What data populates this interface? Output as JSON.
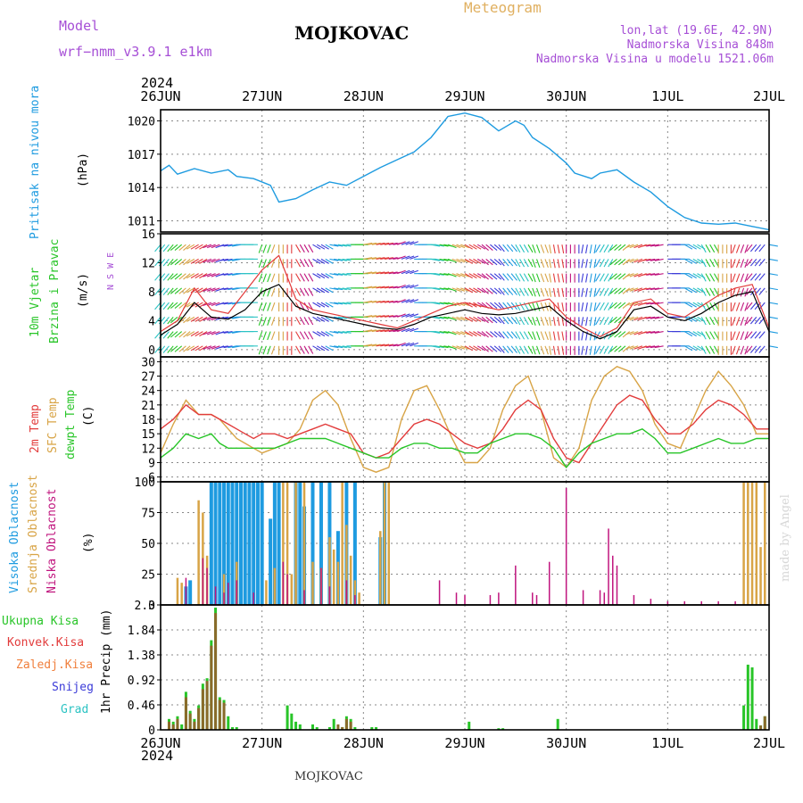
{
  "header": {
    "model_label": "Model",
    "model_name": "wrf−nmm_v3.9.1 e1km",
    "station": "MOJKOVAC",
    "product": "Meteogram",
    "location": "lon,lat (19.6E, 42.9N)",
    "elevation": "Nadmorska Visina 848m",
    "model_elevation": "Nadmorska Visina u modelu 1521.06m",
    "footer_station": "MOJKOVAC",
    "credit": "made by Angel"
  },
  "colors": {
    "pressure": "#1e9be0",
    "wind_speed": "#000000",
    "wind_gust": "#e23b3b",
    "temp": "#e23b3b",
    "sfc_temp": "#d8a446",
    "dewpoint": "#28c528",
    "high_cloud": "#1e9be0",
    "mid_cloud": "#d8a446",
    "low_cloud": "#c0157e",
    "total_precip": "#28c528",
    "conv_precip": "#e23b3b",
    "frozen_precip": "#f07f3c",
    "snow": "#3b3bd8",
    "graupel": "#2bc3c3",
    "model_label": "#a64fd6",
    "product_title": "#e0b060"
  },
  "time_axis": {
    "year": "2024",
    "day_labels": [
      "26JUN",
      "27JUN",
      "28JUN",
      "29JUN",
      "30JUN",
      "1JUL",
      "2JUL"
    ],
    "hours": 144
  },
  "chart_data": [
    {
      "type": "line",
      "panel": "pressure",
      "ylabel_left": "Pritisak na nivou mora",
      "ylabel_unit": "(hPa)",
      "yticks": [
        1011,
        1014,
        1017,
        1020
      ],
      "ylim": [
        1010,
        1021
      ],
      "x_hours": [
        0,
        2,
        4,
        8,
        12,
        16,
        18,
        22,
        26,
        28,
        32,
        36,
        40,
        44,
        48,
        52,
        56,
        60,
        64,
        68,
        72,
        76,
        80,
        84,
        86,
        88,
        92,
        96,
        98,
        102,
        104,
        108,
        112,
        116,
        120,
        124,
        128,
        132,
        136,
        140,
        144
      ],
      "values": [
        1015.5,
        1016.0,
        1015.2,
        1015.7,
        1015.3,
        1015.6,
        1015.0,
        1014.8,
        1014.2,
        1012.7,
        1013.0,
        1013.8,
        1014.5,
        1014.2,
        1015.0,
        1015.8,
        1016.5,
        1017.2,
        1018.5,
        1020.4,
        1020.7,
        1020.3,
        1019.1,
        1020.0,
        1019.6,
        1018.5,
        1017.5,
        1016.2,
        1015.3,
        1014.8,
        1015.3,
        1015.6,
        1014.5,
        1013.6,
        1012.3,
        1011.3,
        1010.8,
        1010.7,
        1010.8,
        1010.5,
        1010.2
      ]
    },
    {
      "type": "line",
      "panel": "wind",
      "ylabel_left": "10m Vjetar",
      "ylabel_left2": "Brzina i Pravac",
      "ylabel_unit": "(m/s)",
      "direction_legend": "N S W E",
      "yticks": [
        0,
        4,
        8,
        12,
        16
      ],
      "ylim": [
        -1,
        16
      ],
      "x_hours": [
        0,
        4,
        8,
        12,
        16,
        20,
        24,
        28,
        32,
        36,
        40,
        44,
        48,
        52,
        56,
        60,
        64,
        68,
        72,
        76,
        80,
        84,
        88,
        92,
        96,
        100,
        104,
        108,
        112,
        116,
        120,
        124,
        128,
        132,
        136,
        140,
        144
      ],
      "series": [
        {
          "name": "speed",
          "values": [
            2.0,
            3.5,
            6.5,
            4.5,
            4.2,
            5.5,
            8.0,
            9.0,
            6.0,
            5.0,
            4.5,
            4.0,
            3.5,
            3.0,
            2.8,
            3.5,
            4.5,
            5.0,
            5.5,
            5.0,
            4.8,
            5.0,
            5.5,
            6.0,
            4.0,
            2.5,
            1.5,
            2.5,
            5.5,
            6.0,
            4.5,
            4.0,
            5.0,
            6.5,
            7.5,
            8.0,
            2.5
          ]
        },
        {
          "name": "gust",
          "values": [
            2.5,
            4.0,
            8.5,
            5.5,
            5.0,
            8.0,
            11.0,
            13.0,
            7.0,
            5.5,
            5.0,
            4.5,
            4.0,
            3.5,
            3.0,
            4.0,
            5.0,
            6.0,
            6.5,
            6.0,
            5.5,
            6.0,
            6.5,
            7.0,
            4.5,
            3.0,
            1.8,
            3.0,
            6.5,
            7.0,
            5.0,
            4.5,
            6.0,
            7.5,
            8.5,
            9.0,
            3.0
          ]
        },
        {
          "name": "direction_deg",
          "values": [
            220,
            230,
            240,
            250,
            260,
            270,
            200,
            180,
            150,
            120,
            100,
            90,
            80,
            80,
            70,
            90,
            100,
            110,
            120,
            130,
            140,
            150,
            160,
            170,
            180,
            190,
            210,
            230,
            250,
            260,
            90,
            120,
            150,
            180,
            200,
            220,
            100
          ]
        }
      ]
    },
    {
      "type": "line",
      "panel": "temperature",
      "ylabel_left": "2m Temp",
      "ylabel_left2": "SFC Temp",
      "ylabel_left3": "dewpt Temp",
      "ylabel_unit": "(C)",
      "yticks": [
        6,
        9,
        12,
        15,
        18,
        21,
        24,
        27,
        30
      ],
      "ylim": [
        5,
        31
      ],
      "x_hours": [
        0,
        3,
        6,
        9,
        12,
        14,
        16,
        18,
        20,
        22,
        24,
        27,
        30,
        33,
        36,
        39,
        42,
        45,
        48,
        51,
        54,
        57,
        60,
        63,
        66,
        69,
        72,
        75,
        78,
        81,
        84,
        87,
        90,
        93,
        96,
        99,
        102,
        105,
        108,
        111,
        114,
        117,
        120,
        123,
        126,
        129,
        132,
        135,
        138,
        141,
        144
      ],
      "series": [
        {
          "name": "2m",
          "values": [
            16,
            18,
            21,
            19,
            19,
            18,
            17,
            16,
            15,
            14,
            15,
            15,
            14,
            15,
            16,
            17,
            16,
            15,
            11,
            10,
            11,
            14,
            17,
            18,
            17,
            15,
            13,
            12,
            13,
            16,
            20,
            22,
            20,
            14,
            10,
            9,
            13,
            17,
            21,
            23,
            22,
            18,
            15,
            15,
            17,
            20,
            22,
            21,
            19,
            16,
            16
          ]
        },
        {
          "name": "sfc",
          "values": [
            11,
            17,
            22,
            19,
            19,
            18,
            16,
            14,
            13,
            12,
            11,
            12,
            13,
            16,
            22,
            24,
            21,
            14,
            8,
            7,
            8,
            18,
            24,
            25,
            20,
            14,
            9,
            9,
            12,
            20,
            25,
            27,
            20,
            10,
            8,
            12,
            22,
            27,
            29,
            28,
            24,
            17,
            13,
            12,
            18,
            24,
            28,
            25,
            21,
            15,
            15
          ]
        },
        {
          "name": "dewpoint",
          "values": [
            10,
            12,
            15,
            14,
            15,
            13,
            12,
            12,
            12,
            12,
            12,
            12,
            13,
            14,
            14,
            14,
            13,
            12,
            11,
            10,
            10,
            12,
            13,
            13,
            12,
            12,
            11,
            11,
            13,
            14,
            15,
            15,
            14,
            12,
            8,
            11,
            13,
            14,
            15,
            15,
            16,
            14,
            11,
            11,
            12,
            13,
            14,
            13,
            13,
            14,
            14
          ]
        }
      ]
    },
    {
      "type": "bar",
      "panel": "cloud",
      "ylabel_left": "Visoka Oblacnost",
      "ylabel_left2": "Srednja Oblacnost",
      "ylabel_left3": "Niska Oblacnost",
      "ylabel_unit": "(%)",
      "yticks": [
        0,
        25,
        50,
        75,
        100
      ],
      "ylim": [
        0,
        100
      ],
      "series": [
        {
          "name": "high",
          "x_hours": [
            6,
            7,
            12,
            13,
            14,
            15,
            16,
            17,
            18,
            19,
            20,
            21,
            22,
            23,
            24,
            26,
            27,
            28,
            32,
            33,
            34,
            36,
            38,
            40,
            42,
            44,
            46,
            52,
            53
          ],
          "values": [
            15,
            20,
            100,
            100,
            100,
            100,
            100,
            100,
            100,
            100,
            100,
            100,
            100,
            100,
            100,
            70,
            100,
            100,
            100,
            100,
            80,
            100,
            100,
            100,
            60,
            100,
            100,
            55,
            100
          ]
        },
        {
          "name": "mid",
          "x_hours": [
            4,
            5,
            9,
            10,
            11,
            15,
            18,
            25,
            27,
            29,
            30,
            31,
            32,
            34,
            36,
            38,
            40,
            41,
            42,
            43,
            44,
            45,
            46,
            47,
            52,
            53,
            54,
            138,
            139,
            140,
            141,
            142,
            143
          ],
          "values": [
            22,
            18,
            85,
            75,
            40,
            25,
            35,
            20,
            30,
            100,
            100,
            25,
            100,
            100,
            35,
            30,
            55,
            45,
            35,
            100,
            65,
            40,
            20,
            10,
            60,
            100,
            100,
            100,
            100,
            100,
            100,
            47,
            100
          ]
        },
        {
          "name": "low",
          "x_hours": [
            6,
            10,
            11,
            13,
            15,
            16,
            18,
            22,
            29,
            30,
            34,
            38,
            40,
            44,
            46,
            66,
            70,
            72,
            78,
            80,
            84,
            88,
            89,
            92,
            96,
            100,
            104,
            105,
            106,
            107,
            108,
            112,
            116,
            120,
            124,
            128,
            132,
            136
          ],
          "values": [
            22,
            38,
            30,
            15,
            10,
            18,
            20,
            10,
            35,
            25,
            12,
            30,
            15,
            20,
            8,
            20,
            10,
            8,
            8,
            10,
            32,
            10,
            8,
            35,
            95,
            12,
            12,
            10,
            62,
            40,
            32,
            8,
            5,
            3,
            3,
            3,
            3,
            3
          ]
        }
      ]
    },
    {
      "type": "bar",
      "panel": "precipitation",
      "ylabel_left": "1hr Precip (mm)",
      "legend": [
        "Ukupna Kisa",
        "Konvek.Kisa",
        "Zaledj.Kisa",
        "Snijeg",
        "Grad"
      ],
      "yticks": [
        0,
        0.46,
        0.92,
        1.38,
        1.84,
        2.3
      ],
      "ylim": [
        0,
        2.3
      ],
      "series": [
        {
          "name": "total",
          "x_hours": [
            2,
            3,
            4,
            5,
            6,
            7,
            8,
            9,
            10,
            11,
            12,
            13,
            14,
            15,
            16,
            17,
            18,
            30,
            31,
            32,
            33,
            36,
            37,
            40,
            41,
            43,
            44,
            45,
            46,
            50,
            51,
            73,
            80,
            81,
            94,
            138,
            139,
            140,
            141,
            142,
            143
          ],
          "values": [
            0.2,
            0.15,
            0.25,
            0.1,
            0.7,
            0.35,
            0.2,
            0.45,
            0.85,
            0.95,
            1.65,
            2.25,
            0.6,
            0.55,
            0.25,
            0.05,
            0.05,
            0.45,
            0.3,
            0.15,
            0.1,
            0.1,
            0.05,
            0.05,
            0.2,
            0.05,
            0.25,
            0.2,
            0.05,
            0.05,
            0.05,
            0.15,
            0.03,
            0.03,
            0.2,
            0.45,
            1.2,
            1.15,
            0.2,
            0.08,
            0.25
          ]
        },
        {
          "name": "convective",
          "x_hours": [
            2,
            3,
            4,
            6,
            7,
            8,
            9,
            10,
            11,
            12,
            13,
            14,
            15,
            42,
            43,
            44,
            45,
            142,
            143
          ],
          "values": [
            0.15,
            0.1,
            0.2,
            0.6,
            0.3,
            0.15,
            0.4,
            0.75,
            0.9,
            1.55,
            2.15,
            0.55,
            0.5,
            0.1,
            0.05,
            0.2,
            0.15,
            0.08,
            0.25
          ]
        }
      ]
    }
  ]
}
